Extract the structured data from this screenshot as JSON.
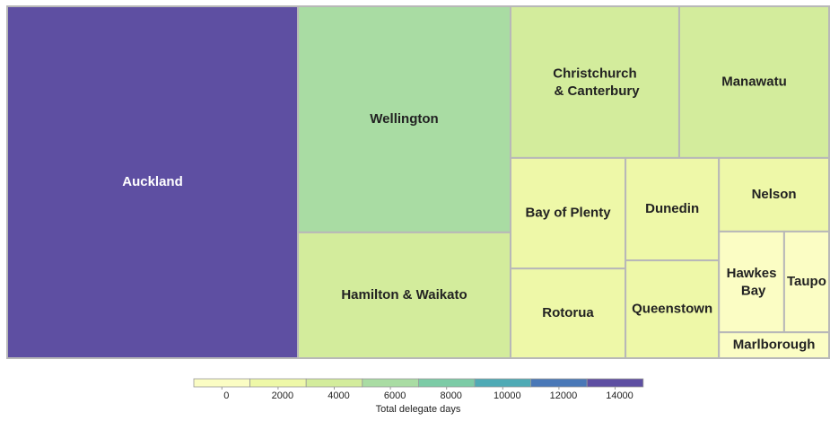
{
  "chart_data": {
    "type": "treemap",
    "categories": [
      "Auckland",
      "Wellington",
      "Hamilton & Waikato",
      "Christchurch & Canterbury",
      "Manawatu",
      "Bay of Plenty",
      "Rotorua",
      "Dunedin",
      "Queenstown",
      "Nelson",
      "Hawkes Bay",
      "Taupo",
      "Marlborough"
    ],
    "values": [
      14000,
      6580,
      3660,
      3500,
      3110,
      1740,
      1410,
      1310,
      1250,
      1110,
      900,
      620,
      390
    ],
    "colorbar": {
      "title": "Total delegate days",
      "ticks": [
        0,
        2000,
        4000,
        6000,
        8000,
        10000,
        12000,
        14000
      ],
      "colors": [
        "#fbfdc4",
        "#eef8a8",
        "#d3ec9c",
        "#a9dca3",
        "#7ccba6",
        "#4faab5",
        "#4a78b7",
        "#5e4fa2"
      ]
    }
  }
}
